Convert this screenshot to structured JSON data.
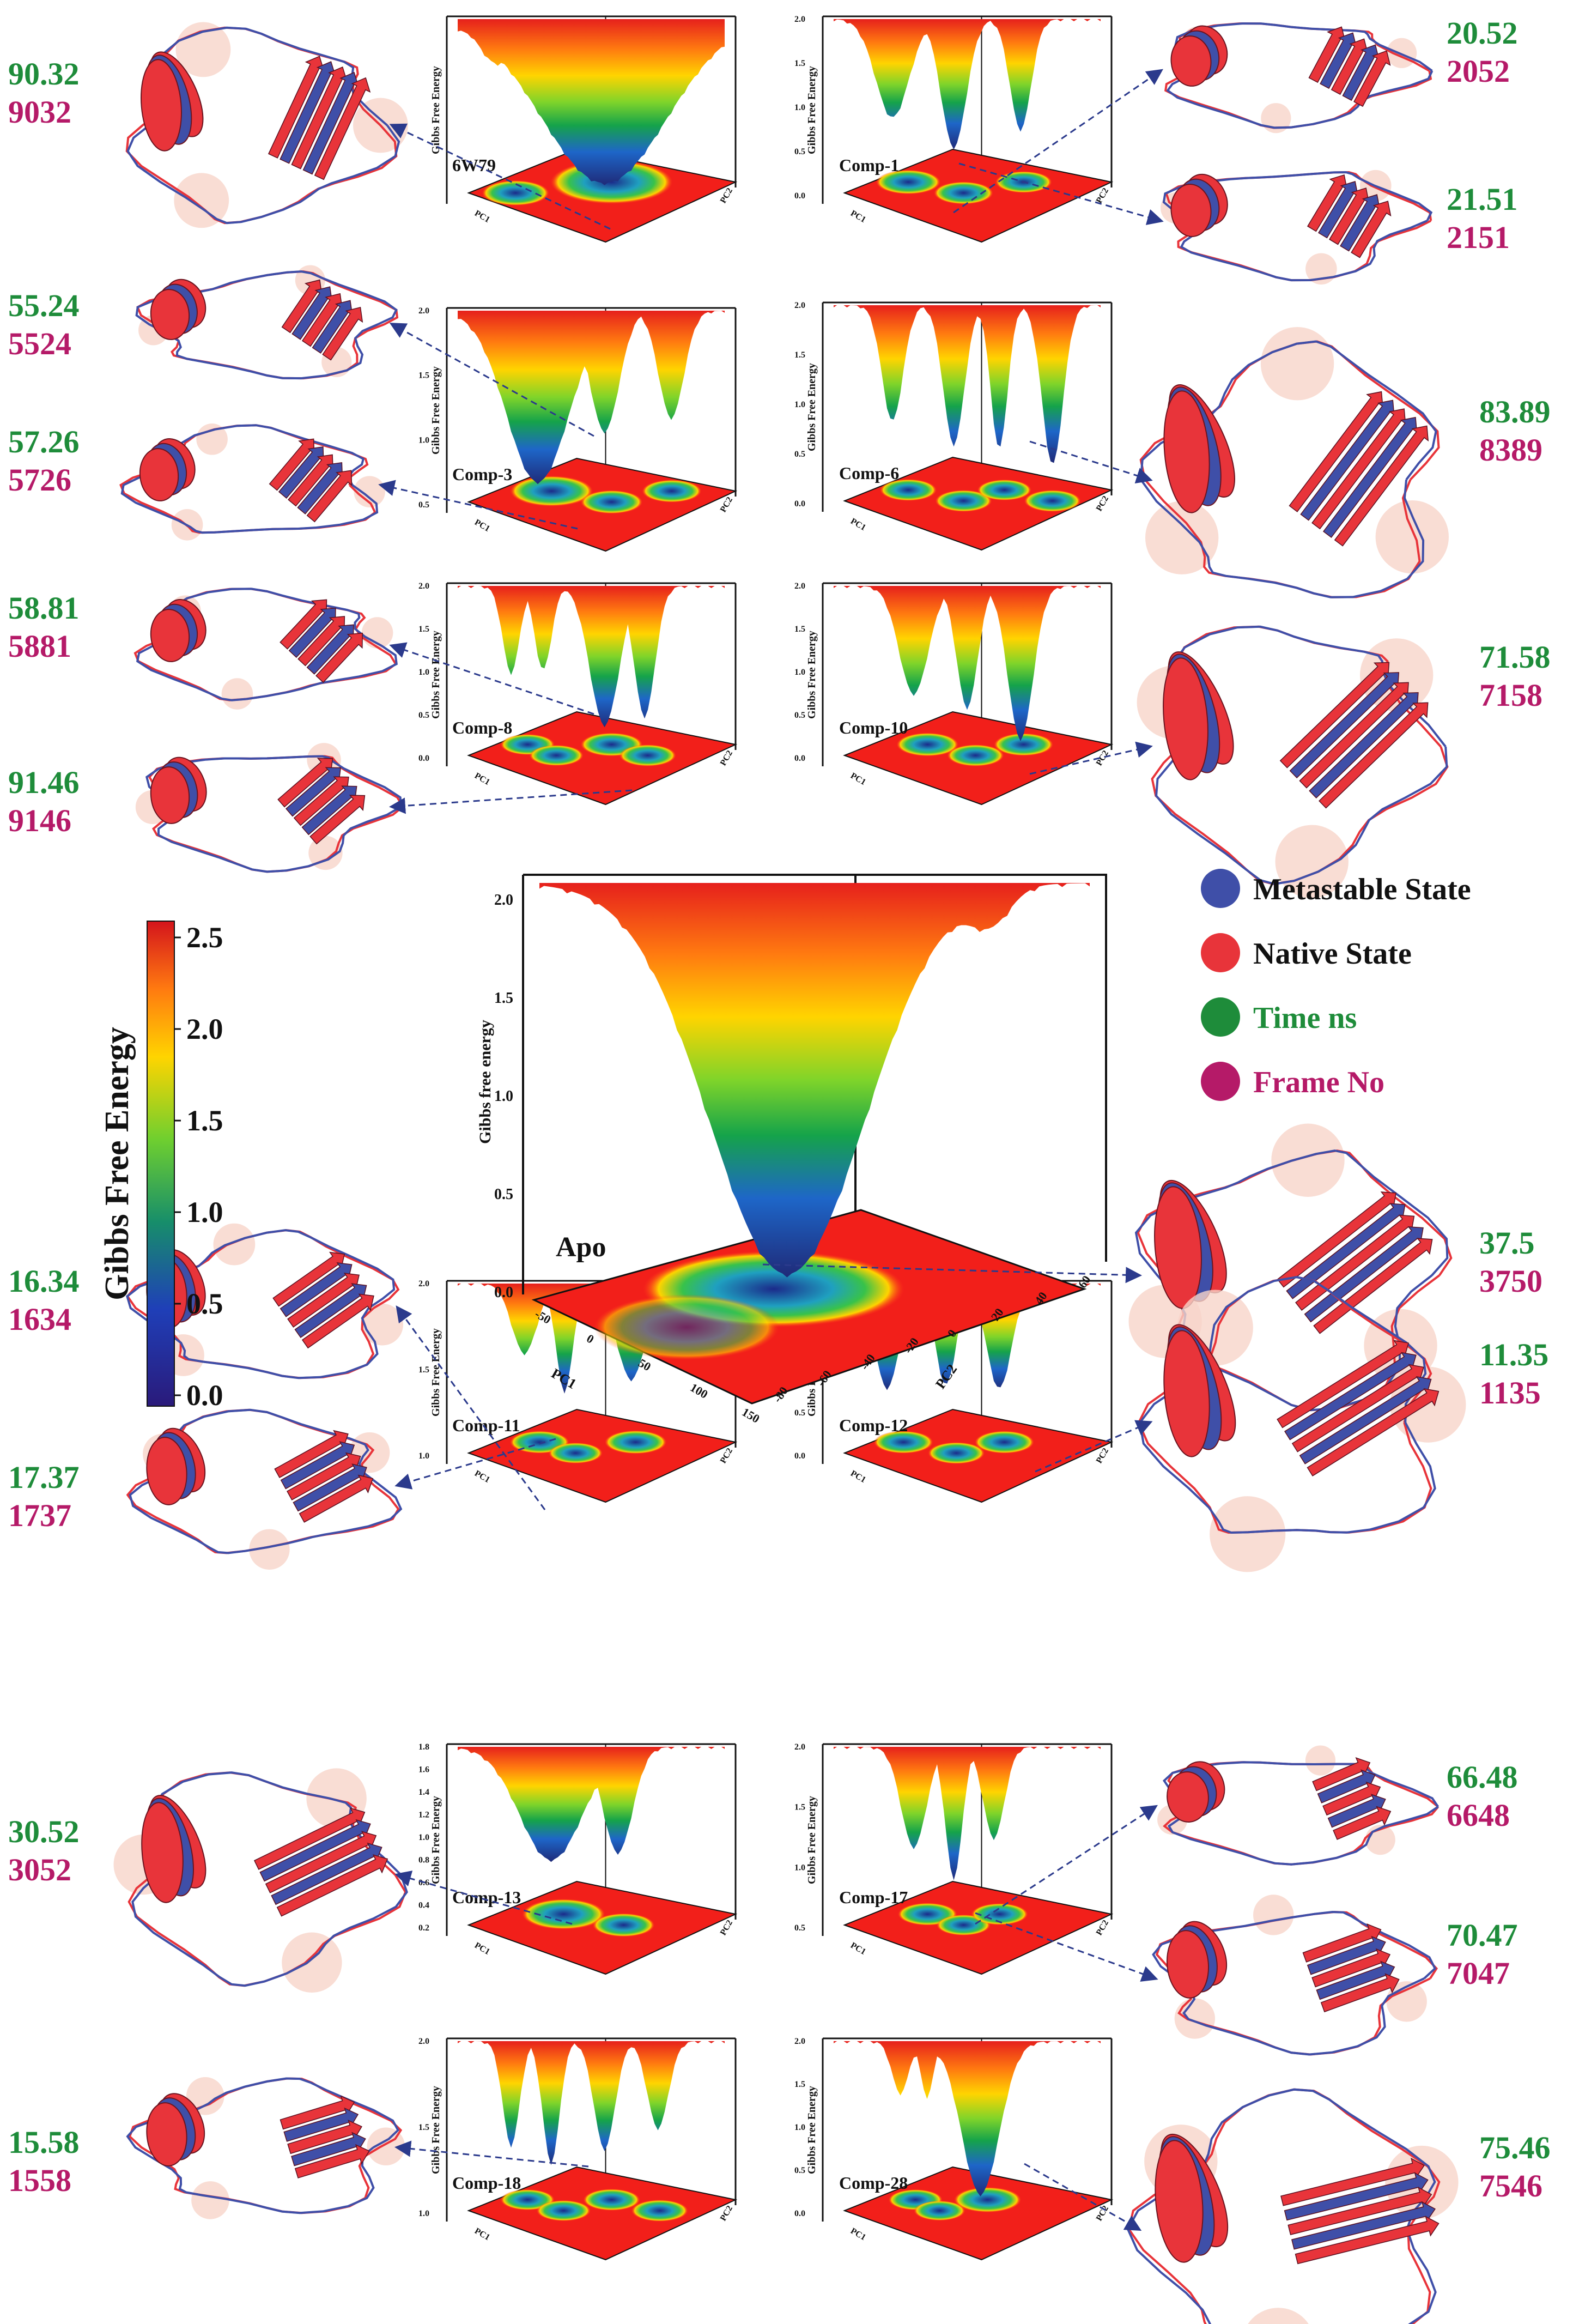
{
  "colors": {
    "time": "#1e8c3a",
    "frame": "#b51a68",
    "metastable": "#3f4fa8",
    "native": "#e8343a",
    "arrow": "#2b3a8c",
    "highlight": "#f7d4c9"
  },
  "colorbar": {
    "title": "Gibbs Free Energy",
    "ticks": [
      "0.0",
      "0.5",
      "1.0",
      "1.5",
      "2.0",
      "2.5"
    ]
  },
  "legend": {
    "items": [
      {
        "label": "Metastable State",
        "swatch": "metastable"
      },
      {
        "label": "Native State",
        "swatch": "native"
      },
      {
        "label": "Time ns",
        "swatch": "time",
        "text_color": "time"
      },
      {
        "label": "Frame No",
        "swatch": "frame",
        "text_color": "frame"
      }
    ]
  },
  "axis_text": {
    "zlabel_small": "Gibbs Free Energy",
    "zlabel_main": "Gibbs free energy",
    "pc1": "PC1",
    "pc2": "PC2"
  },
  "main_plot": {
    "name": "Apo",
    "zticks": [
      "0.0",
      "0.5",
      "1.0",
      "1.5",
      "2.0"
    ],
    "pc1_ticks": [
      "-50",
      "0",
      "50",
      "100",
      "150"
    ],
    "pc2_ticks": [
      "-80",
      "-60",
      "-40",
      "-20",
      "0",
      "20",
      "40",
      "60"
    ]
  },
  "panels": [
    {
      "name": "6W79",
      "zticks": []
    },
    {
      "name": "Comp-1",
      "zticks": [
        "0.0",
        "0.5",
        "1.0",
        "1.5",
        "2.0"
      ]
    },
    {
      "name": "Comp-3",
      "zticks": [
        "0.5",
        "1.0",
        "1.5",
        "2.0"
      ]
    },
    {
      "name": "Comp-6",
      "zticks": [
        "0.0",
        "0.5",
        "1.0",
        "1.5",
        "2.0"
      ]
    },
    {
      "name": "Comp-8",
      "zticks": [
        "0.0",
        "0.5",
        "1.0",
        "1.5",
        "2.0"
      ]
    },
    {
      "name": "Comp-10",
      "zticks": [
        "0.0",
        "0.5",
        "1.0",
        "1.5",
        "2.0"
      ]
    },
    {
      "name": "Comp-11",
      "zticks": [
        "1.0",
        "1.5",
        "2.0"
      ]
    },
    {
      "name": "Comp-12",
      "zticks": [
        "0.0",
        "0.5",
        "1.0",
        "1.5",
        "2.0"
      ]
    },
    {
      "name": "Comp-13",
      "zticks": [
        "0.2",
        "0.4",
        "0.6",
        "0.8",
        "1.0",
        "1.2",
        "1.4",
        "1.6",
        "1.8"
      ]
    },
    {
      "name": "Comp-17",
      "zticks": [
        "0.5",
        "1.0",
        "1.5",
        "2.0"
      ]
    },
    {
      "name": "Comp-18",
      "zticks": [
        "1.0",
        "1.5",
        "2.0"
      ]
    },
    {
      "name": "Comp-28",
      "zticks": [
        "0.0",
        "0.5",
        "1.0",
        "1.5",
        "2.0"
      ]
    }
  ],
  "states": [
    {
      "time": "90.32",
      "frame": "9032"
    },
    {
      "time": "20.52",
      "frame": "2052"
    },
    {
      "time": "21.51",
      "frame": "2151"
    },
    {
      "time": "55.24",
      "frame": "5524"
    },
    {
      "time": "83.89",
      "frame": "8389"
    },
    {
      "time": "57.26",
      "frame": "5726"
    },
    {
      "time": "58.81",
      "frame": "5881"
    },
    {
      "time": "71.58",
      "frame": "7158"
    },
    {
      "time": "91.46",
      "frame": "9146"
    },
    {
      "time": "37.5",
      "frame": "3750"
    },
    {
      "time": "16.34",
      "frame": "1634"
    },
    {
      "time": "11.35",
      "frame": "1135"
    },
    {
      "time": "17.37",
      "frame": "1737"
    },
    {
      "time": "30.52",
      "frame": "3052"
    },
    {
      "time": "66.48",
      "frame": "6648"
    },
    {
      "time": "70.47",
      "frame": "7047"
    },
    {
      "time": "15.58",
      "frame": "1558"
    },
    {
      "time": "75.46",
      "frame": "7546"
    }
  ]
}
